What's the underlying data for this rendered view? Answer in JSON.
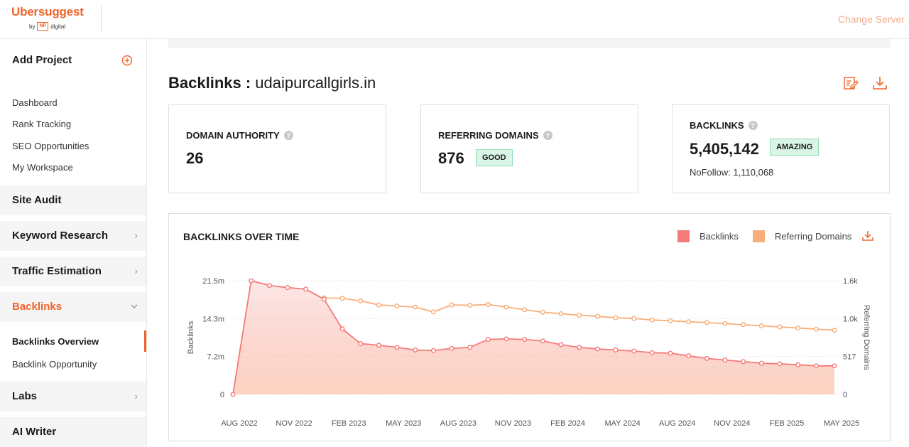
{
  "app": {
    "logo_title": "Ubersuggest",
    "logo_by": "by",
    "logo_np": "NP",
    "logo_digital": "digital",
    "change_server": "Change Server"
  },
  "sidebar": {
    "add_project": "Add Project",
    "links": [
      "Dashboard",
      "Rank Tracking",
      "SEO Opportunities",
      "My Workspace"
    ],
    "sections": {
      "site_audit": "Site Audit",
      "keyword_research": "Keyword Research",
      "traffic_estimation": "Traffic Estimation",
      "backlinks": "Backlinks",
      "labs": "Labs",
      "ai_writer": "AI Writer"
    },
    "backlinks_sub": [
      "Backlinks Overview",
      "Backlink Opportunity"
    ]
  },
  "header": {
    "title_label": "Backlinks :",
    "domain": "udaipurcallgirls.in"
  },
  "cards": {
    "domain_authority": {
      "label": "DOMAIN AUTHORITY",
      "value": "26"
    },
    "referring_domains": {
      "label": "REFERRING DOMAINS",
      "value": "876",
      "badge": "GOOD"
    },
    "backlinks": {
      "label": "BACKLINKS",
      "value": "5,405,142",
      "badge": "AMAZING",
      "nofollow": "NoFollow: 1,110,068"
    }
  },
  "colors": {
    "accent": "#f0642a",
    "backlinks_line": "#f47b78",
    "referring_line": "#f8ae79",
    "badge_bg": "#d9f5e6"
  },
  "chart_data": {
    "type": "line",
    "title": "BACKLINKS OVER TIME",
    "x_ticks": [
      "AUG 2022",
      "NOV 2022",
      "FEB 2023",
      "MAY 2023",
      "AUG 2023",
      "NOV 2023",
      "FEB 2024",
      "MAY 2024",
      "AUG 2024",
      "NOV 2024",
      "FEB 2025",
      "MAY 2025"
    ],
    "ylabel": "Backlinks",
    "y2label": "Referring Domains",
    "yticks_left": [
      "0",
      "7.2m",
      "14.3m",
      "21.5m"
    ],
    "yticks_right": [
      "0",
      "517",
      "1.0k",
      "1.6k"
    ],
    "ylim": [
      0,
      21.5
    ],
    "y2lim": [
      0,
      1550
    ],
    "series": [
      {
        "name": "Backlinks",
        "unit": "millions",
        "color": "#f47b78",
        "values": [
          0,
          21.5,
          20.6,
          20.2,
          19.9,
          18.0,
          12.4,
          9.6,
          9.3,
          8.9,
          8.4,
          8.3,
          8.7,
          8.9,
          10.4,
          10.5,
          10.4,
          10.1,
          9.4,
          8.9,
          8.6,
          8.4,
          8.2,
          7.9,
          7.8,
          7.3,
          6.8,
          6.5,
          6.2,
          5.9,
          5.8,
          5.6,
          5.4,
          5.4
        ]
      },
      {
        "name": "Referring Domains",
        "unit": "count",
        "color": "#f8ae79",
        "values": [
          null,
          null,
          null,
          null,
          null,
          1315,
          1310,
          1275,
          1220,
          1205,
          1190,
          1125,
          1220,
          1215,
          1225,
          1190,
          1155,
          1120,
          1100,
          1080,
          1065,
          1045,
          1035,
          1015,
          1005,
          990,
          980,
          965,
          950,
          935,
          920,
          905,
          890,
          875
        ]
      }
    ],
    "legend": [
      "Backlinks",
      "Referring Domains"
    ],
    "legend_position": "top-right"
  }
}
